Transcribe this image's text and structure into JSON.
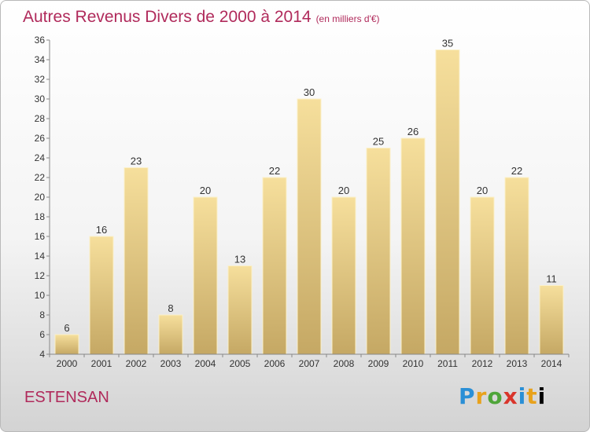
{
  "header": {
    "title": "Autres Revenus Divers de 2000 à 2014",
    "unit": "(en milliers d'€)"
  },
  "footer": {
    "commune": "ESTENSAN",
    "brand_letters": [
      "P",
      "r",
      "o",
      "x",
      "i",
      "t",
      "i"
    ]
  },
  "colors": {
    "title": "#b02a5b",
    "bar_top": "#f6df9c",
    "bar_bottom": "#c5a864"
  },
  "chart_data": {
    "type": "bar",
    "title": "Autres Revenus Divers de 2000 à 2014",
    "subtitle": "(en milliers d'€)",
    "xlabel": "",
    "ylabel": "",
    "categories": [
      "2000",
      "2001",
      "2002",
      "2003",
      "2004",
      "2005",
      "2006",
      "2007",
      "2008",
      "2009",
      "2010",
      "2011",
      "2012",
      "2013",
      "2014"
    ],
    "values": [
      6,
      16,
      23,
      8,
      20,
      13,
      22,
      30,
      20,
      25,
      26,
      35,
      20,
      22,
      11
    ],
    "ylim": [
      4,
      36
    ],
    "yticks": [
      4,
      6,
      8,
      10,
      12,
      14,
      16,
      18,
      20,
      22,
      24,
      26,
      28,
      30,
      32,
      34,
      36
    ],
    "grid": false,
    "legend": "none"
  }
}
